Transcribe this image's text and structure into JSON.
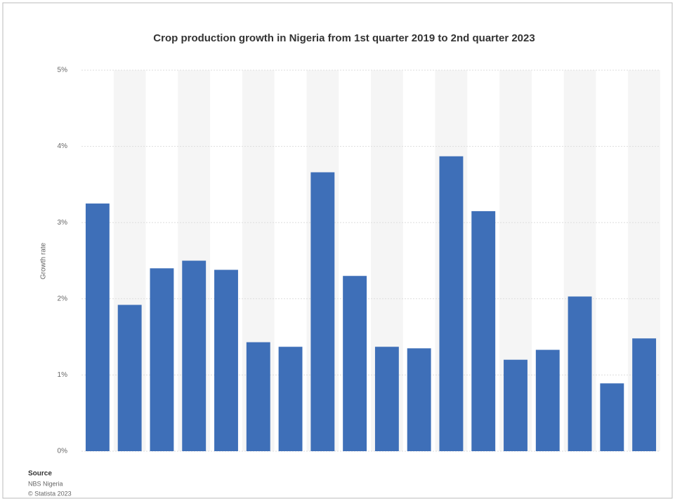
{
  "chart_data": {
    "type": "bar",
    "title": "Crop production growth in Nigeria from 1st quarter 2019 to 2nd quarter 2023",
    "y_label": "Growth rate",
    "categories": [
      null,
      null,
      null,
      null,
      null,
      null,
      null,
      null,
      null,
      null,
      null,
      null,
      null,
      null,
      null,
      null,
      null,
      null
    ],
    "values": [
      3.25,
      1.92,
      2.4,
      2.5,
      2.38,
      1.43,
      1.37,
      3.66,
      2.3,
      1.37,
      1.35,
      3.87,
      3.15,
      1.2,
      1.33,
      2.03,
      0.89,
      1.48
    ],
    "color": "#3e6fb8",
    "ylim": [
      0,
      5
    ],
    "yticks": [
      {
        "value": 0,
        "label": "0%"
      },
      {
        "value": 1,
        "label": "1%"
      },
      {
        "value": 2,
        "label": "2%"
      },
      {
        "value": 3,
        "label": "3%"
      },
      {
        "value": 4,
        "label": "4%"
      },
      {
        "value": 5,
        "label": "5%"
      }
    ],
    "grid": true,
    "source": {
      "heading": "Source",
      "lines": [
        "NBS Nigeria",
        "© Statista 2023"
      ]
    }
  }
}
